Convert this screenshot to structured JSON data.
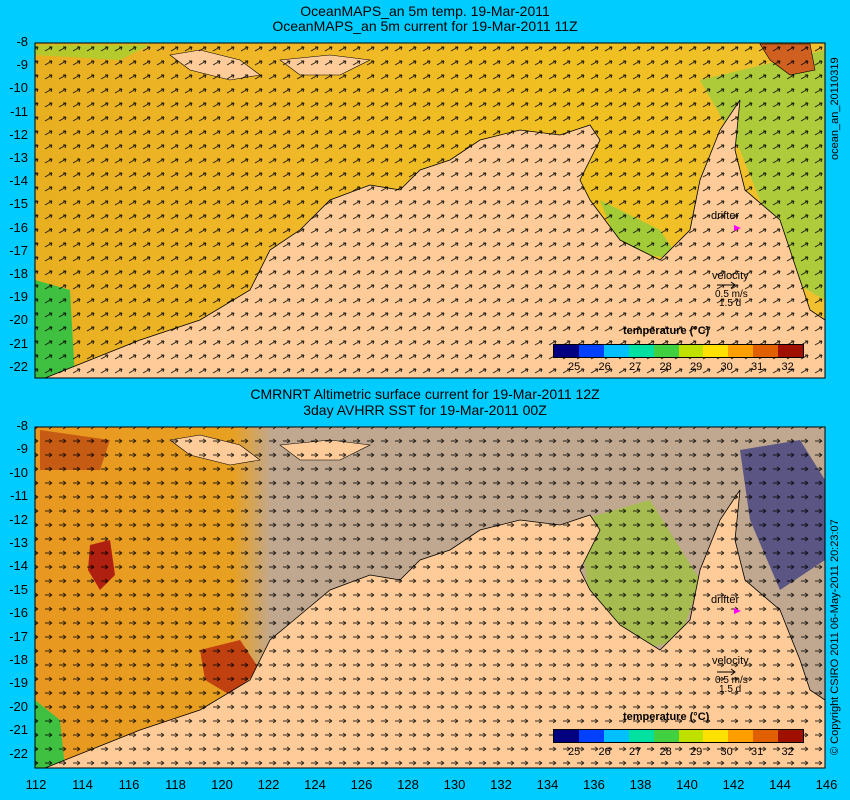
{
  "top_panel": {
    "title_line1": "OceanMAPS_an 5m temp. 19-Mar-2011",
    "title_line2": "OceanMAPS_an 5m current for 19-Mar-2011 11Z",
    "side_label": "ocean_an_20110319",
    "drifter_label": "drifter",
    "velocity_label": "velocity",
    "velocity_scale": "0.5 m/s",
    "velocity_time": "1.5 d",
    "colorbar_title": "temperature (°C)"
  },
  "bottom_panel": {
    "title_line1": "CMRNRT Altimetric surface current for 19-Mar-2011 12Z",
    "title_line2": "3day AVHRR SST for 19-Mar-2011 00Z",
    "side_label": "© Copyright CSIRO 2011   06-May-2011 20:23:07",
    "drifter_label": "drifter",
    "velocity_label": "velocity",
    "velocity_scale": "0.5 m/s",
    "velocity_time": "1.5 d",
    "colorbar_title": "temperature (°C)"
  },
  "lat_labels": [
    "-8",
    "-9",
    "-10",
    "-11",
    "-12",
    "-13",
    "-14",
    "-15",
    "-16",
    "-17",
    "-18",
    "-19",
    "-20",
    "-21",
    "-22"
  ],
  "lon_labels": [
    "112",
    "114",
    "116",
    "118",
    "120",
    "122",
    "124",
    "126",
    "128",
    "130",
    "132",
    "134",
    "136",
    "138",
    "140",
    "142",
    "144",
    "146"
  ],
  "colorbar_ticks": [
    "25",
    "26",
    "27",
    "28",
    "29",
    "30",
    "31",
    "32"
  ],
  "colorbar_colors": [
    "#000080",
    "#0040ff",
    "#00c0ff",
    "#00e0a0",
    "#40d040",
    "#c0e000",
    "#ffe000",
    "#ffa000",
    "#e06000",
    "#a01000"
  ],
  "colors": {
    "background": "#00ccff",
    "land": "#ffcc99",
    "ocean_warm": "#f0b020",
    "no_data": "#c0a890",
    "drifter": "#ff00ff"
  }
}
